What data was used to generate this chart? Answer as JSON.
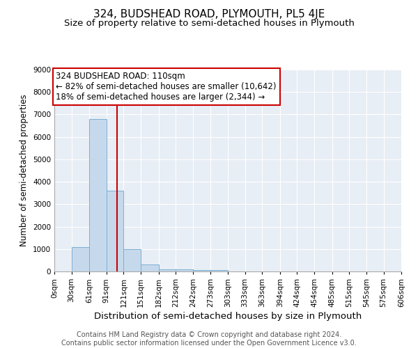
{
  "title": "324, BUDSHEAD ROAD, PLYMOUTH, PL5 4JE",
  "subtitle": "Size of property relative to semi-detached houses in Plymouth",
  "xlabel": "Distribution of semi-detached houses by size in Plymouth",
  "ylabel": "Number of semi-detached properties",
  "bin_edges": [
    0,
    30,
    61,
    91,
    121,
    151,
    182,
    212,
    242,
    273,
    303,
    333,
    363,
    394,
    424,
    454,
    485,
    515,
    545,
    575,
    606
  ],
  "bar_heights": [
    0,
    1100,
    6800,
    3600,
    1000,
    300,
    100,
    100,
    50,
    50,
    0,
    0,
    0,
    0,
    0,
    0,
    0,
    0,
    0,
    0
  ],
  "bar_color": "#c6d9ec",
  "bar_edgecolor": "#7bafd4",
  "property_size": 110,
  "vline_color": "#cc0000",
  "annotation_line1": "324 BUDSHEAD ROAD: 110sqm",
  "annotation_line2": "← 82% of semi-detached houses are smaller (10,642)",
  "annotation_line3": "18% of semi-detached houses are larger (2,344) →",
  "annotation_box_color": "#cc0000",
  "ylim": [
    0,
    9000
  ],
  "yticks": [
    0,
    1000,
    2000,
    3000,
    4000,
    5000,
    6000,
    7000,
    8000,
    9000
  ],
  "background_color": "#e8eef5",
  "footer_text": "Contains HM Land Registry data © Crown copyright and database right 2024.\nContains public sector information licensed under the Open Government Licence v3.0.",
  "title_fontsize": 11,
  "subtitle_fontsize": 9.5,
  "xlabel_fontsize": 9.5,
  "ylabel_fontsize": 8.5,
  "tick_fontsize": 7.5,
  "annotation_fontsize": 8.5,
  "footer_fontsize": 7
}
